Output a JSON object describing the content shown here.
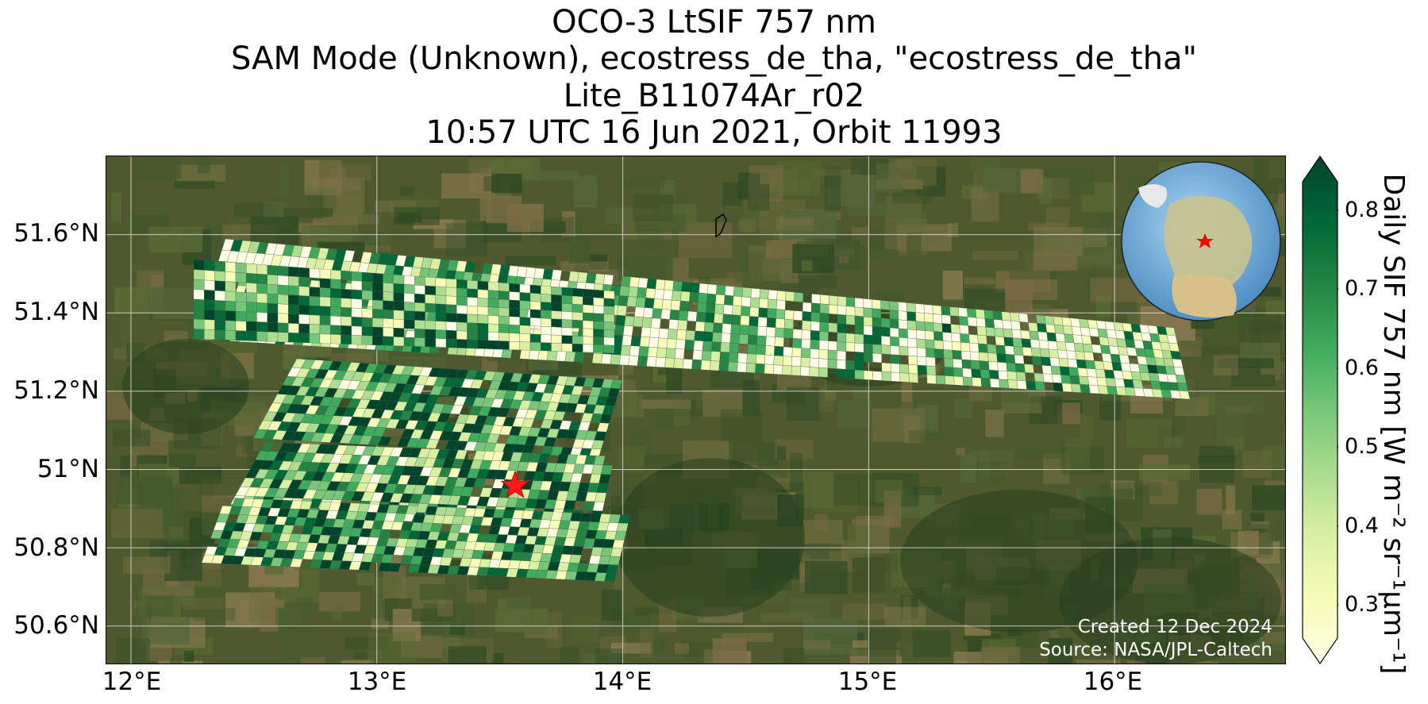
{
  "title": {
    "line1": "OCO-3 LtSIF 757 nm",
    "line2": "SAM Mode (Unknown), ecostress_de_tha, \"ecostress_de_tha\"",
    "line3": "Lite_B11074Ar_r02",
    "line4": "10:57 UTC 16 Jun 2021, Orbit 11993"
  },
  "map": {
    "lon_range": [
      11.9,
      16.7
    ],
    "lat_range": [
      50.5,
      51.8
    ],
    "x_ticks": [
      "12°E",
      "13°E",
      "14°E",
      "15°E",
      "16°E"
    ],
    "y_ticks": [
      "51.6°N",
      "51.4°N",
      "51.2°N",
      "51°N",
      "50.8°N",
      "50.6°N"
    ],
    "target_marker": "star",
    "target_color": "#ff0000",
    "inset_globe": "globe-inset",
    "gridlines": true
  },
  "credits": {
    "created": "Created 12 Dec 2024",
    "source": "Source: NASA/JPL-Caltech"
  },
  "colorbar": {
    "label": "Daily SIF 757 nm [W m⁻² sr⁻¹μm⁻¹]",
    "ticks": [
      "0.8",
      "0.7",
      "0.6",
      "0.5",
      "0.4",
      "0.3"
    ],
    "min": 0.25,
    "max": 0.85,
    "colormap": [
      "#ffffe5",
      "#f7fcb9",
      "#d9f0a3",
      "#addd8e",
      "#78c679",
      "#41ab5d",
      "#238443",
      "#006837",
      "#004529"
    ]
  }
}
